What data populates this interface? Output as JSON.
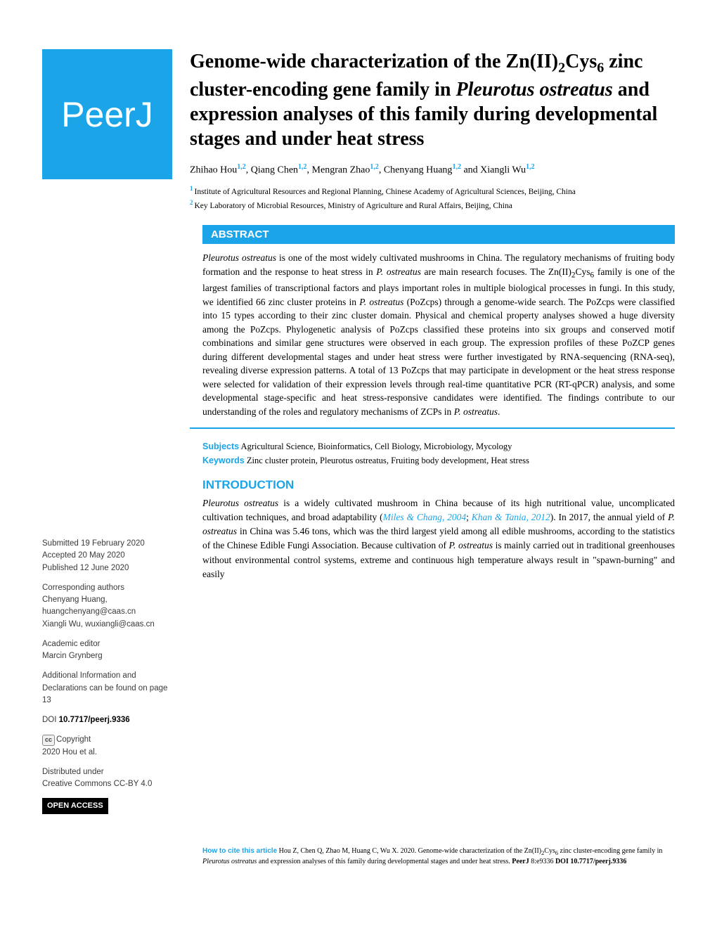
{
  "logo": {
    "text": "PeerJ"
  },
  "title": {
    "pre": "Genome-wide characterization of the Zn(II)",
    "sub1": "2",
    "mid1": "Cys",
    "sub2": "6",
    "mid2": " zinc cluster-encoding gene family in ",
    "italic1": "Pleurotus ostreatus",
    "post": " and expression analyses of this family during developmental stages and under heat stress"
  },
  "authors": [
    {
      "name": "Zhihao Hou",
      "affil": "1,2"
    },
    {
      "name": "Qiang Chen",
      "affil": "1,2"
    },
    {
      "name": "Mengran Zhao",
      "affil": "1,2"
    },
    {
      "name": "Chenyang Huang",
      "affil": "1,2"
    },
    {
      "name": "Xiangli Wu",
      "affil": "1,2"
    }
  ],
  "affiliations": [
    {
      "num": "1",
      "text": "Institute of Agricultural Resources and Regional Planning, Chinese Academy of Agricultural Sciences, Beijing, China"
    },
    {
      "num": "2",
      "text": "Key Laboratory of Microbial Resources, Ministry of Agriculture and Rural Affairs, Beijing, China"
    }
  ],
  "abstract": {
    "heading": "ABSTRACT",
    "text_parts": {
      "p1": "Pleurotus ostreatus",
      "p2": " is one of the most widely cultivated mushrooms in China. The regulatory mechanisms of fruiting body formation and the response to heat stress in ",
      "p3": "P. ostreatus",
      "p4": " are main research focuses. The Zn(II)",
      "p5": "2",
      "p6": "Cys",
      "p7": "6",
      "p8": " family is one of the largest families of transcriptional factors and plays important roles in multiple biological processes in fungi. In this study, we identified 66 zinc cluster proteins in ",
      "p9": "P. ostreatus",
      "p10": " (PoZcps) through a genome-wide search. The PoZcps were classified into 15 types according to their zinc cluster domain. Physical and chemical property analyses showed a huge diversity among the PoZcps. Phylogenetic analysis of PoZcps classified these proteins into six groups and conserved motif combinations and similar gene structures were observed in each group. The expression profiles of these PoZCP genes during different developmental stages and under heat stress were further investigated by RNA-sequencing (RNA-seq), revealing diverse expression patterns. A total of 13 PoZcps that may participate in development or the heat stress response were selected for validation of their expression levels through real-time quantitative PCR (RT-qPCR) analysis, and some developmental stage-specific and heat stress-responsive candidates were identified. The findings contribute to our understanding of the roles and regulatory mechanisms of ZCPs in ",
      "p11": "P. ostreatus",
      "p12": "."
    }
  },
  "subjects": {
    "label": "Subjects",
    "text": "Agricultural Science, Bioinformatics, Cell Biology, Microbiology, Mycology"
  },
  "keywords": {
    "label": "Keywords",
    "pre": "Zinc cluster protein, ",
    "italic": "Pleurotus ostreatus",
    "post": ", Fruiting body development, Heat stress"
  },
  "introduction": {
    "heading": "INTRODUCTION",
    "parts": {
      "i1": "Pleurotus ostreatus",
      "i2": " is a widely cultivated mushroom in China because of its high nutritional value, uncomplicated cultivation techniques, and broad adaptability (",
      "ref1": "Miles & Chang, 2004",
      "i3": "; ",
      "ref2": "Khan & Tania, 2012",
      "i4": "). In 2017, the annual yield of ",
      "i5": "P. ostreatus",
      "i6": " in China was 5.46 tons, which was the third largest yield among all edible mushrooms, according to the statistics of the Chinese Edible Fungi Association. Because cultivation of ",
      "i7": "P. ostreatus",
      "i8": " is mainly carried out in traditional greenhouses without environmental control systems, extreme and continuous high temperature always result in \"spawn-burning\" and easily"
    }
  },
  "sidebar": {
    "submitted_label": "Submitted ",
    "submitted": "19 February 2020",
    "accepted_label": "Accepted ",
    "accepted": "20 May 2020",
    "published_label": "Published ",
    "published": "12 June 2020",
    "corresponding_label": "Corresponding authors",
    "corresponding1": "Chenyang Huang, huangchenyang@caas.cn",
    "corresponding2": "Xiangli Wu, wuxiangli@caas.cn",
    "editor_label": "Academic editor",
    "editor": "Marcin Grynberg",
    "additional_info": "Additional Information and Declarations can be found on page 13",
    "doi_label": "DOI ",
    "doi": "10.7717/peerj.9336",
    "copyright_label": "Copyright",
    "copyright": "2020 Hou et al.",
    "distributed_label": "Distributed under",
    "distributed": "Creative Commons CC-BY 4.0",
    "open_access": "OPEN ACCESS"
  },
  "citation": {
    "label": "How to cite this article",
    "pre": " Hou Z, Chen Q, Zhao M, Huang C, Wu X. 2020. Genome-wide characterization of the Zn(II)",
    "s1": "2",
    "m1": "Cys",
    "s2": "6",
    "m2": " zinc cluster-encoding gene family in ",
    "it1": "Pleurotus ostreatus",
    "m3": " and expression analyses of this family during developmental stages and under heat stress. ",
    "journal": "PeerJ",
    "m4": " 8:e9336 ",
    "doi": "DOI 10.7717/peerj.9336"
  },
  "colors": {
    "brand": "#1ca4e8"
  }
}
